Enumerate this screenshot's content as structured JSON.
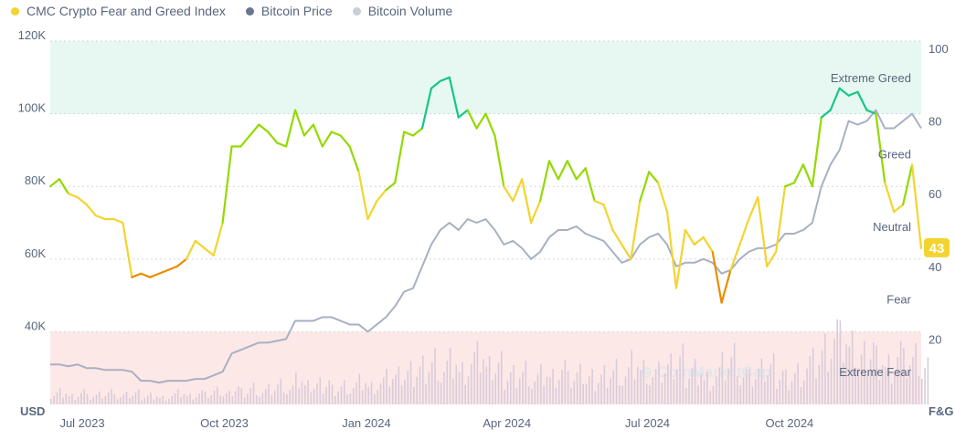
{
  "legend": [
    {
      "label": "CMC Crypto Fear and Greed Index",
      "color": "#f3d42f"
    },
    {
      "label": "Bitcoin Price",
      "color": "#6b7590"
    },
    {
      "label": "Bitcoin Volume",
      "color": "#c9cdd8"
    }
  ],
  "chart_data": {
    "type": "line",
    "title": "CMC Crypto Fear and Greed Index",
    "x_start": "2023-06-15",
    "x_end": "2024-12-30",
    "x_ticks": [
      "Jul 2023",
      "Oct 2023",
      "Jan 2024",
      "Apr 2024",
      "Jul 2024",
      "Oct 2024"
    ],
    "x_tick_dates": [
      "2023-07-01",
      "2023-10-01",
      "2024-01-01",
      "2024-04-01",
      "2024-07-01",
      "2024-10-01"
    ],
    "left_axis": {
      "label": "USD",
      "ticks": [
        "120K",
        "100K",
        "80K",
        "60K",
        "40K"
      ],
      "tick_values": [
        120,
        100,
        80,
        60,
        40
      ],
      "ylim": [
        20,
        120
      ],
      "unit": "K USD"
    },
    "right_axis": {
      "label": "F&G",
      "ticks": [
        "100",
        "80",
        "60",
        "40",
        "20"
      ],
      "tick_values": [
        100,
        80,
        60,
        40,
        20
      ],
      "ylim": [
        0,
        100
      ]
    },
    "zones": [
      {
        "label": "Extreme Greed",
        "range": [
          80,
          100
        ],
        "color": "#e6f8f1"
      },
      {
        "label": "Greed",
        "range": [
          60,
          80
        ]
      },
      {
        "label": "Neutral",
        "range": [
          40,
          60
        ]
      },
      {
        "label": "Fear",
        "range": [
          20,
          40
        ]
      },
      {
        "label": "Extreme Fear",
        "range": [
          0,
          20
        ],
        "color": "#fde8e8"
      }
    ],
    "zone_colors": {
      "extreme_greed": "#16c784",
      "greed": "#93d900",
      "neutral": "#f3d42f",
      "fear": "#ea8c00"
    },
    "current_value": "43",
    "watermark": "CoinMarketCap",
    "series": [
      {
        "name": "CMC Crypto Fear and Greed Index",
        "axis": "right",
        "values": [
          60,
          62,
          58,
          57,
          55,
          52,
          51,
          51,
          50,
          35,
          36,
          35,
          36,
          37,
          38,
          40,
          45,
          43,
          41,
          50,
          71,
          71,
          74,
          77,
          75,
          72,
          71,
          81,
          74,
          77,
          71,
          75,
          74,
          71,
          64,
          51,
          56,
          59,
          61,
          75,
          74,
          76,
          87,
          89,
          90,
          79,
          81,
          76,
          80,
          74,
          60,
          56,
          62,
          50,
          56,
          67,
          62,
          67,
          62,
          65,
          56,
          55,
          48,
          44,
          40,
          56,
          64,
          61,
          53,
          32,
          48,
          44,
          46,
          42,
          28,
          37,
          44,
          51,
          57,
          38,
          42,
          60,
          61,
          66,
          60,
          79,
          81,
          87,
          85,
          86,
          81,
          80,
          61,
          53,
          55,
          66,
          43
        ]
      },
      {
        "name": "Bitcoin Price",
        "axis": "left",
        "color": "#a7b1c2",
        "values": [
          31,
          31,
          30.5,
          31,
          30,
          30,
          29.5,
          29.5,
          29.5,
          29,
          26.5,
          26.5,
          26,
          26.5,
          26.5,
          26.5,
          27,
          27,
          28,
          29,
          34,
          35,
          36,
          37,
          37,
          37.5,
          38,
          43,
          43,
          43,
          44,
          44,
          43,
          42,
          42,
          40,
          42,
          44,
          47,
          51,
          52,
          58,
          64,
          68,
          70,
          68,
          71,
          70,
          71,
          68,
          64,
          65,
          63,
          60,
          62,
          66,
          68,
          68,
          69,
          67,
          66,
          65,
          62,
          59,
          60,
          64,
          66,
          67,
          64,
          58,
          59,
          59,
          60,
          59,
          56,
          57,
          60,
          62,
          63,
          63,
          64,
          67,
          67,
          68,
          70,
          80,
          86,
          90,
          98,
          97,
          98,
          101,
          96,
          96,
          98,
          100,
          96
        ]
      },
      {
        "name": "Bitcoin Volume",
        "axis": "hidden",
        "ylim": [
          0,
          400
        ],
        "color": "#d9ccda",
        "values": [
          12,
          15,
          10,
          14,
          9,
          11,
          13,
          8,
          10,
          12,
          9,
          11,
          8,
          10,
          13,
          9,
          12,
          10,
          14,
          11,
          18,
          15,
          20,
          14,
          17,
          22,
          16,
          25,
          19,
          21,
          24,
          18,
          22,
          20,
          26,
          19,
          23,
          28,
          30,
          34,
          38,
          45,
          52,
          40,
          48,
          36,
          44,
          50,
          38,
          42,
          32,
          36,
          40,
          28,
          34,
          30,
          38,
          26,
          32,
          28,
          30,
          36,
          42,
          34,
          46,
          38,
          30,
          34,
          40,
          48,
          36,
          42,
          30,
          34,
          44,
          52,
          30,
          28,
          36,
          40,
          34,
          32,
          38,
          44,
          48,
          60,
          72,
          66,
          58,
          50,
          62,
          54,
          46,
          58,
          48,
          52,
          40
        ]
      }
    ]
  }
}
